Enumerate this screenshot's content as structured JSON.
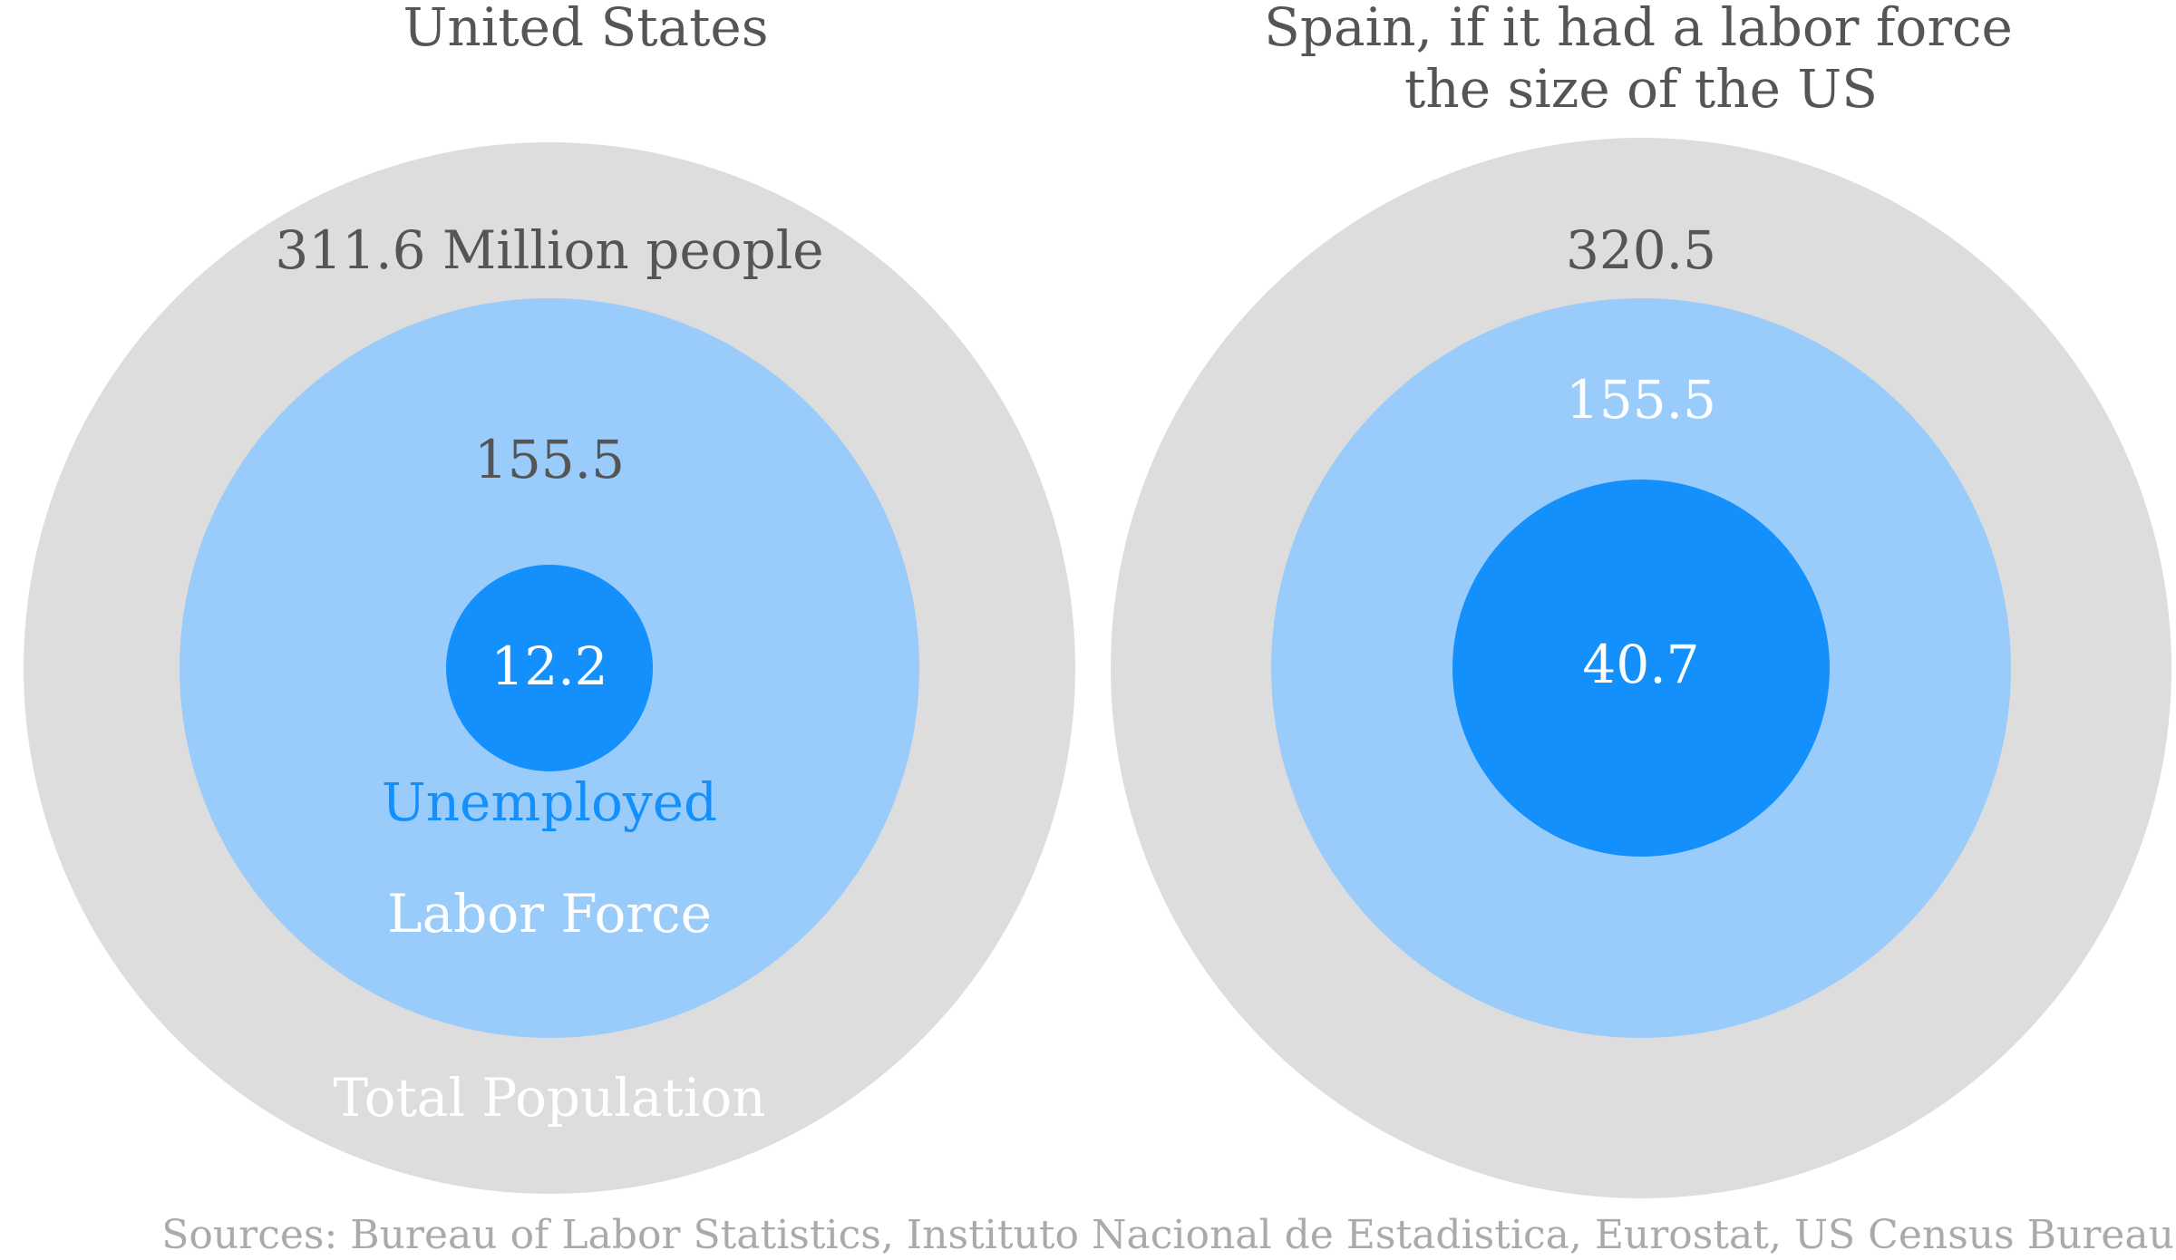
{
  "colors": {
    "total_population": "#dddddd",
    "labor_force": "#99cbfb",
    "unemployed": "#1390fc",
    "text_dark": "#555555",
    "text_white": "#ffffff",
    "text_blue": "#1390fc",
    "source_text": "#aaaaaa"
  },
  "source": "Sources: Bureau of Labor Statistics, Instituto Nacional de Estadistica, Eurostat, US Census Bureau",
  "chart_data": [
    {
      "type": "nested-circles",
      "title": "United States",
      "unit": "Million people",
      "total_population": {
        "value": 311.6,
        "value_label": "311.6 Million people",
        "label": "Total Population"
      },
      "labor_force": {
        "value": 155.5,
        "value_label": "155.5",
        "label": "Labor Force"
      },
      "unemployed": {
        "value": 12.2,
        "value_label": "12.2",
        "label": "Unemployed"
      }
    },
    {
      "type": "nested-circles",
      "title": "Spain, if it had a labor force the size of the US",
      "title_lines": [
        "Spain, if it had a labor force",
        "the size of the US"
      ],
      "unit": "Million people",
      "total_population": {
        "value": 320.5,
        "value_label": "320.5",
        "label": ""
      },
      "labor_force": {
        "value": 155.5,
        "value_label": "155.5",
        "label": ""
      },
      "unemployed": {
        "value": 40.7,
        "value_label": "40.7",
        "label": ""
      }
    }
  ]
}
